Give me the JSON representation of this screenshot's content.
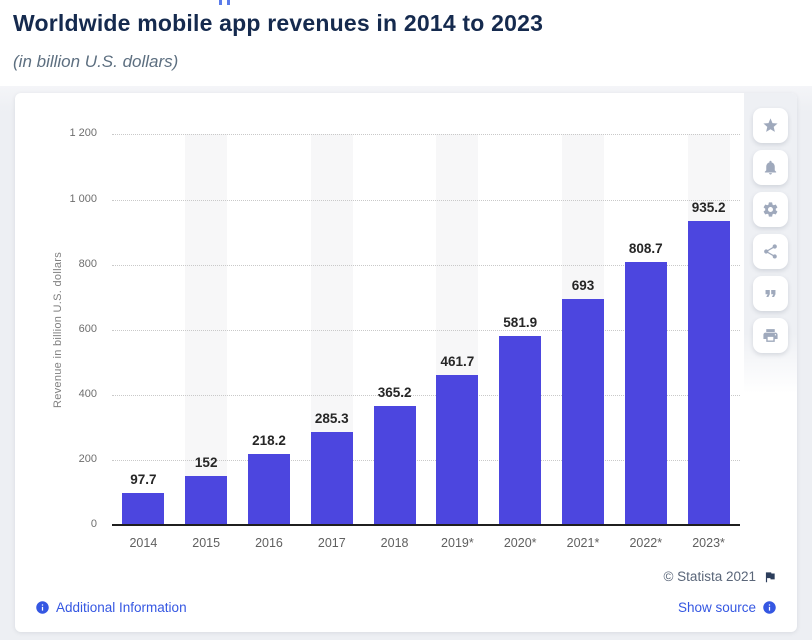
{
  "page": {
    "title": "Worldwide mobile app revenues in 2014 to 2023",
    "subtitle": "(in billion U.S. dollars)"
  },
  "toolbar": {
    "icons": [
      "star-icon",
      "bell-icon",
      "gear-icon",
      "share-icon",
      "quote-icon",
      "printer-icon"
    ]
  },
  "chart_data": {
    "type": "bar",
    "title": "Worldwide mobile app revenues in 2014 to 2023",
    "subtitle": "(in billion U.S. dollars)",
    "categories": [
      "2014",
      "2015",
      "2016",
      "2017",
      "2018",
      "2019*",
      "2020*",
      "2021*",
      "2022*",
      "2023*"
    ],
    "values": [
      97.7,
      152,
      218.2,
      285.3,
      365.2,
      461.7,
      581.9,
      693,
      808.7,
      935.2
    ],
    "value_labels": [
      "97.7",
      "152",
      "218.2",
      "285.3",
      "365.2",
      "461.7",
      "581.9",
      "693",
      "808.7",
      "935.2"
    ],
    "xlabel": "",
    "ylabel": "Revenue in billion U.S. dollars",
    "ylim": [
      0,
      1200
    ],
    "ytick_step": 200,
    "ytick_labels": [
      "0",
      "200",
      "400",
      "600",
      "800",
      "1 000",
      "1 200"
    ],
    "grid": "horizontal-dotted",
    "legend": null,
    "bar_color": "#4c46df",
    "band_color": "#f7f7f8"
  },
  "footer": {
    "copyright": "© Statista 2021",
    "additional_info_label": "Additional Information",
    "show_source_label": "Show source"
  },
  "colors": {
    "title_navy": "#152a4e",
    "link_blue": "#3557e2",
    "page_gray": "#edeff3"
  }
}
